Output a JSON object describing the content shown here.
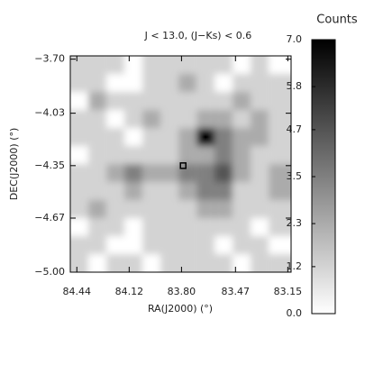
{
  "chart_data": {
    "type": "heatmap",
    "title": "J < 13.0,    (J−Ks) < 0.6",
    "x_label": "RA(J2000) (°)",
    "y_label": "DEC(J2000) (°)",
    "colorbar_label": "Counts",
    "xlim": [
      84.48,
      83.13
    ],
    "ylim": [
      -5.0,
      -3.68
    ],
    "xticks": [
      84.44,
      84.12,
      {
        "value": 83.8,
        "label": "83.80"
      },
      83.47,
      83.15
    ],
    "yticks": [
      {
        "value": -3.7,
        "label": "−3.70"
      },
      {
        "value": -4.03,
        "label": "−4.03"
      },
      {
        "value": -4.35,
        "label": "−4.35"
      },
      {
        "value": -4.67,
        "label": "−4.67"
      },
      {
        "value": -5.0,
        "label": "−5.00"
      }
    ],
    "zlim": [
      0,
      7
    ],
    "zticks": [
      {
        "value": 0,
        "label": "0.0"
      },
      1.2,
      2.3,
      3.5,
      4.7,
      5.8,
      {
        "value": 7,
        "label": "7.0"
      }
    ],
    "x": [
      84.425,
      84.315,
      84.204,
      84.094,
      83.984,
      83.874,
      83.764,
      83.653,
      83.543,
      83.433,
      83.323,
      83.212
    ],
    "y": [
      -3.735,
      -3.845,
      -3.955,
      -4.065,
      -4.175,
      -4.285,
      -4.395,
      -4.505,
      -4.615,
      -4.725,
      -4.835,
      -4.945
    ],
    "z": [
      [
        1.2,
        1.2,
        1.2,
        0,
        1.2,
        1.2,
        1.2,
        1.2,
        1.2,
        0,
        1.2,
        0
      ],
      [
        1.2,
        1.2,
        0,
        0,
        1.2,
        1.2,
        2.3,
        1.2,
        0,
        1.2,
        1.2,
        1.2
      ],
      [
        0,
        2.3,
        1.2,
        1.2,
        1.2,
        1.2,
        1.2,
        1.2,
        1.2,
        2.3,
        1.2,
        1.2
      ],
      [
        1.2,
        1.2,
        0,
        1.2,
        2.3,
        1.2,
        1.2,
        2.3,
        2.3,
        1.2,
        2.3,
        1.2
      ],
      [
        1.2,
        1.2,
        1.2,
        0,
        1.2,
        1.2,
        2.3,
        7.0,
        3.5,
        2.3,
        2.3,
        1.2
      ],
      [
        0,
        1.2,
        1.2,
        1.2,
        1.2,
        1.2,
        2.3,
        2.3,
        3.5,
        2.3,
        1.2,
        1.2
      ],
      [
        1.2,
        1.2,
        2.3,
        3.5,
        2.3,
        2.3,
        3.5,
        3.5,
        4.7,
        2.3,
        1.2,
        2.3
      ],
      [
        1.2,
        1.2,
        1.2,
        2.3,
        1.2,
        1.2,
        2.3,
        3.5,
        3.5,
        1.2,
        1.2,
        2.3
      ],
      [
        1.2,
        2.3,
        1.2,
        1.2,
        1.2,
        1.2,
        1.2,
        2.3,
        2.3,
        1.2,
        1.2,
        1.2
      ],
      [
        0,
        1.2,
        1.2,
        0,
        1.2,
        1.2,
        1.2,
        1.2,
        1.2,
        1.2,
        0,
        1.2
      ],
      [
        1.2,
        1.2,
        0,
        0,
        1.2,
        1.2,
        1.2,
        1.2,
        0,
        1.2,
        1.2,
        0
      ],
      [
        1.2,
        0,
        1.2,
        1.2,
        0,
        1.2,
        1.2,
        1.2,
        1.2,
        0,
        1.2,
        1.2
      ]
    ],
    "marker": {
      "x": 83.79,
      "y": -4.35
    }
  }
}
